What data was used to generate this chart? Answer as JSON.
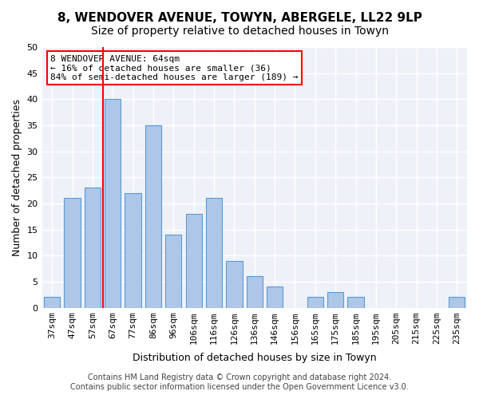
{
  "title_line1": "8, WENDOVER AVENUE, TOWYN, ABERGELE, LL22 9LP",
  "title_line2": "Size of property relative to detached houses in Towyn",
  "xlabel": "Distribution of detached houses by size in Towyn",
  "ylabel": "Number of detached properties",
  "categories": [
    "37sqm",
    "47sqm",
    "57sqm",
    "67sqm",
    "77sqm",
    "86sqm",
    "96sqm",
    "106sqm",
    "116sqm",
    "126sqm",
    "136sqm",
    "146sqm",
    "156sqm",
    "165sqm",
    "175sqm",
    "185sqm",
    "195sqm",
    "205sqm",
    "215sqm",
    "225sqm",
    "235sqm"
  ],
  "values": [
    2,
    21,
    23,
    40,
    22,
    35,
    14,
    18,
    21,
    9,
    6,
    4,
    0,
    2,
    3,
    2,
    0,
    0,
    0,
    0,
    2
  ],
  "bar_color": "#aec6e8",
  "bar_edge_color": "#5b9bd5",
  "annotation_box_text": "8 WENDOVER AVENUE: 64sqm\n← 16% of detached houses are smaller (36)\n84% of semi-detached houses are larger (189) →",
  "vline_x": 2.5,
  "ylim": [
    0,
    50
  ],
  "yticks": [
    0,
    5,
    10,
    15,
    20,
    25,
    30,
    35,
    40,
    45,
    50
  ],
  "footer_line1": "Contains HM Land Registry data © Crown copyright and database right 2024.",
  "footer_line2": "Contains public sector information licensed under the Open Government Licence v3.0.",
  "background_color": "#eef2f8",
  "grid_color": "#ffffff",
  "title_fontsize": 11,
  "subtitle_fontsize": 10,
  "axis_label_fontsize": 9,
  "tick_fontsize": 8,
  "annotation_fontsize": 8,
  "footer_fontsize": 7
}
